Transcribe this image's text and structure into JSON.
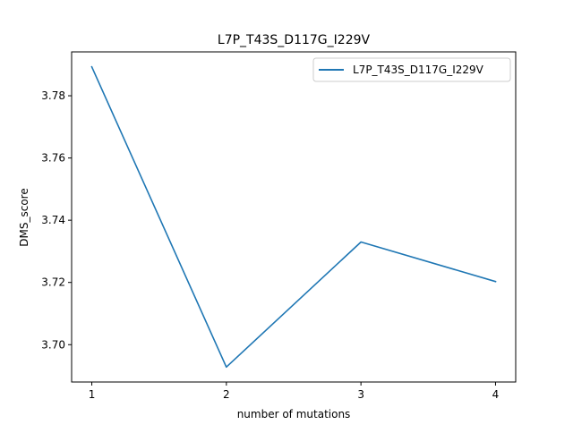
{
  "chart_data": {
    "type": "line",
    "title": "L7P_T43S_D117G_I229V",
    "xlabel": "number of mutations",
    "ylabel": "DMS_score",
    "x": [
      1,
      2,
      3,
      4
    ],
    "series": [
      {
        "name": "L7P_T43S_D117G_I229V",
        "values": [
          3.7893,
          3.6928,
          3.733,
          3.7203
        ],
        "color": "#1f77b4"
      }
    ],
    "xticks": [
      "1",
      "2",
      "3",
      "4"
    ],
    "yticks": [
      "3.70",
      "3.72",
      "3.74",
      "3.76",
      "3.78"
    ],
    "xlim": [
      0.85,
      4.15
    ],
    "ylim": [
      3.688,
      3.7941
    ],
    "grid": false,
    "legend_position": "upper right"
  }
}
